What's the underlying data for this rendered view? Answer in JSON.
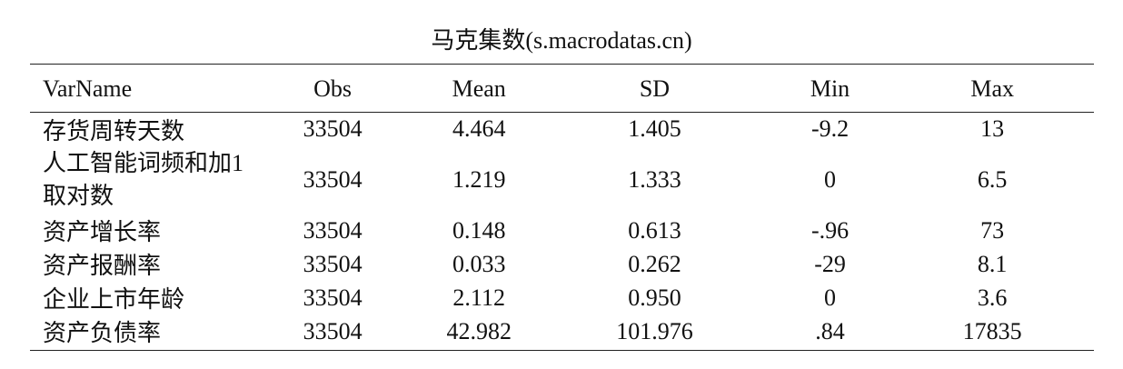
{
  "title": "马克集数(s.macrodatas.cn)",
  "columns": [
    "VarName",
    "Obs",
    "Mean",
    "SD",
    "Min",
    "Max"
  ],
  "rows": [
    {
      "varname": "存货周转天数",
      "obs": "33504",
      "mean": "4.464",
      "sd": "1.405",
      "min": "-9.2",
      "max": "13"
    },
    {
      "varname": "人工智能词频和加1取对数",
      "obs": "33504",
      "mean": "1.219",
      "sd": "1.333",
      "min": "0",
      "max": "6.5"
    },
    {
      "varname": "资产增长率",
      "obs": "33504",
      "mean": "0.148",
      "sd": "0.613",
      "min": "-.96",
      "max": "73"
    },
    {
      "varname": "资产报酬率",
      "obs": "33504",
      "mean": "0.033",
      "sd": "0.262",
      "min": "-29",
      "max": "8.1"
    },
    {
      "varname": "企业上市年龄",
      "obs": "33504",
      "mean": "2.112",
      "sd": "0.950",
      "min": "0",
      "max": "3.6"
    },
    {
      "varname": "资产负债率",
      "obs": "33504",
      "mean": "42.982",
      "sd": "101.976",
      "min": ".84",
      "max": "17835"
    }
  ]
}
